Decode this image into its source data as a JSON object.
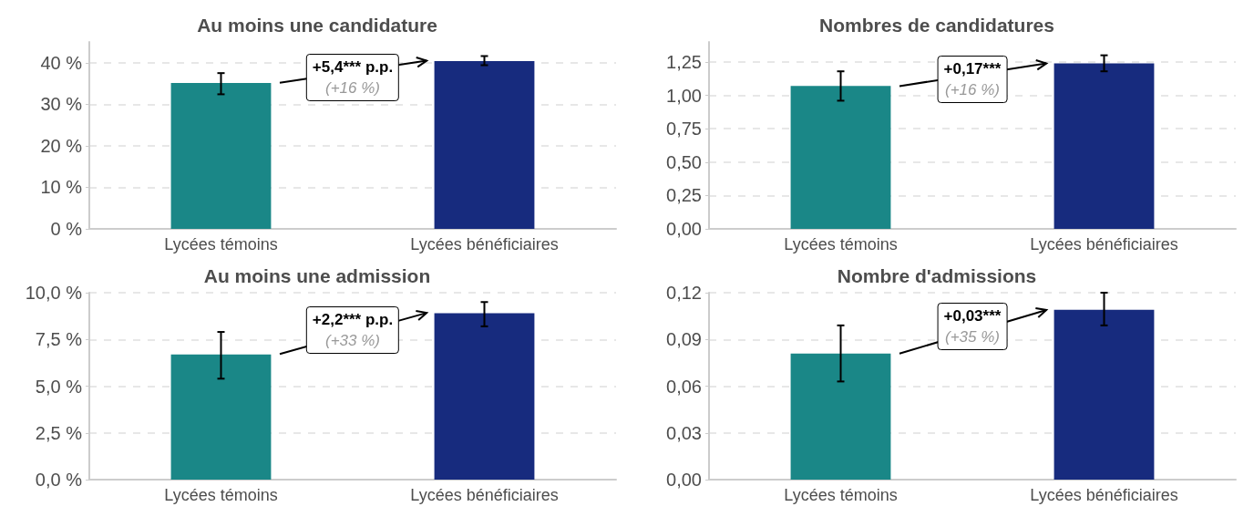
{
  "chart_data": [
    {
      "type": "bar",
      "title": "Au moins une candidature",
      "categories": [
        "Lycées témoins",
        "Lycées bénéficiaires"
      ],
      "values": [
        35.1,
        40.4
      ],
      "colors": [
        "#1a8787",
        "#172b7e"
      ],
      "errors": [
        [
          32.4,
          37.5
        ],
        [
          39.4,
          41.6
        ]
      ],
      "ylim": [
        0,
        45
      ],
      "yticks": [
        {
          "value": 0,
          "label": "0 %"
        },
        {
          "value": 10,
          "label": "10 %"
        },
        {
          "value": 20,
          "label": "20 %"
        },
        {
          "value": 30,
          "label": "30 %"
        },
        {
          "value": 40,
          "label": "40 %"
        }
      ],
      "grid": "y",
      "annotations": [
        "+5,4*** p.p.",
        "(+16 %)"
      ]
    },
    {
      "type": "bar",
      "title": "Nombres de candidatures",
      "categories": [
        "Lycées témoins",
        "Lycées bénéficiaires"
      ],
      "values": [
        1.07,
        1.24
      ],
      "colors": [
        "#1a8787",
        "#172b7e"
      ],
      "errors": [
        [
          0.96,
          1.18
        ],
        [
          1.18,
          1.3
        ]
      ],
      "ylim": [
        0,
        1.4
      ],
      "yticks": [
        {
          "value": 0,
          "label": "0,00"
        },
        {
          "value": 0.25,
          "label": "0,25"
        },
        {
          "value": 0.5,
          "label": "0,50"
        },
        {
          "value": 0.75,
          "label": "0,75"
        },
        {
          "value": 1,
          "label": "1,00"
        },
        {
          "value": 1.25,
          "label": "1,25"
        }
      ],
      "grid": "y",
      "annotations": [
        "+0,17***",
        "(+16 %)"
      ]
    },
    {
      "type": "bar",
      "title": "Au moins une admission",
      "categories": [
        "Lycées témoins",
        "Lycées bénéficiaires"
      ],
      "values": [
        6.7,
        8.9
      ],
      "colors": [
        "#1a8787",
        "#172b7e"
      ],
      "errors": [
        [
          5.4,
          7.9
        ],
        [
          8.2,
          9.5
        ]
      ],
      "ylim": [
        0,
        10
      ],
      "yticks": [
        {
          "value": 0,
          "label": "0,0 %"
        },
        {
          "value": 2.5,
          "label": "2,5 %"
        },
        {
          "value": 5,
          "label": "5,0 %"
        },
        {
          "value": 7.5,
          "label": "7,5 %"
        },
        {
          "value": 10,
          "label": "10,0 %"
        }
      ],
      "grid": "y",
      "annotations": [
        "+2,2*** p.p.",
        "(+33 %)"
      ]
    },
    {
      "type": "bar",
      "title": "Nombre d'admissions",
      "categories": [
        "Lycées témoins",
        "Lycées bénéficiaires"
      ],
      "values": [
        0.081,
        0.109
      ],
      "colors": [
        "#1a8787",
        "#172b7e"
      ],
      "errors": [
        [
          0.063,
          0.099
        ],
        [
          0.099,
          0.12
        ]
      ],
      "ylim": [
        0,
        0.12
      ],
      "yticks": [
        {
          "value": 0,
          "label": "0,00"
        },
        {
          "value": 0.03,
          "label": "0,03"
        },
        {
          "value": 0.06,
          "label": "0,06"
        },
        {
          "value": 0.09,
          "label": "0,09"
        },
        {
          "value": 0.12,
          "label": "0,12"
        }
      ],
      "grid": "y",
      "annotations": [
        "+0,03***",
        "(+35 %)"
      ]
    }
  ]
}
